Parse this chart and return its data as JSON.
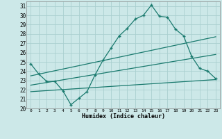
{
  "xlabel": "Humidex (Indice chaleur)",
  "bg_color": "#cce8e8",
  "grid_color": "#aad0d0",
  "line_color": "#1a7a6e",
  "xlim": [
    -0.5,
    23.5
  ],
  "ylim": [
    20,
    31.5
  ],
  "xticks": [
    0,
    1,
    2,
    3,
    4,
    5,
    6,
    7,
    8,
    9,
    10,
    11,
    12,
    13,
    14,
    15,
    16,
    17,
    18,
    19,
    20,
    21,
    22,
    23
  ],
  "yticks": [
    20,
    21,
    22,
    23,
    24,
    25,
    26,
    27,
    28,
    29,
    30,
    31
  ],
  "line1_x": [
    0,
    1,
    2,
    3,
    4,
    5,
    6,
    7,
    8,
    9,
    10,
    11,
    12,
    13,
    14,
    15,
    16,
    17,
    18,
    19,
    20,
    21,
    22,
    23
  ],
  "line1_y": [
    24.8,
    23.7,
    22.9,
    22.9,
    21.9,
    20.4,
    21.1,
    21.8,
    23.6,
    25.2,
    26.5,
    27.8,
    28.6,
    29.6,
    30.0,
    31.1,
    29.9,
    29.8,
    28.5,
    27.8,
    25.6,
    24.3,
    24.0,
    23.2
  ],
  "line2_x": [
    0,
    23
  ],
  "line2_y": [
    23.5,
    27.7
  ],
  "line3_x": [
    0,
    23
  ],
  "line3_y": [
    22.5,
    25.8
  ],
  "line4_x": [
    0,
    23
  ],
  "line4_y": [
    21.8,
    23.1
  ]
}
